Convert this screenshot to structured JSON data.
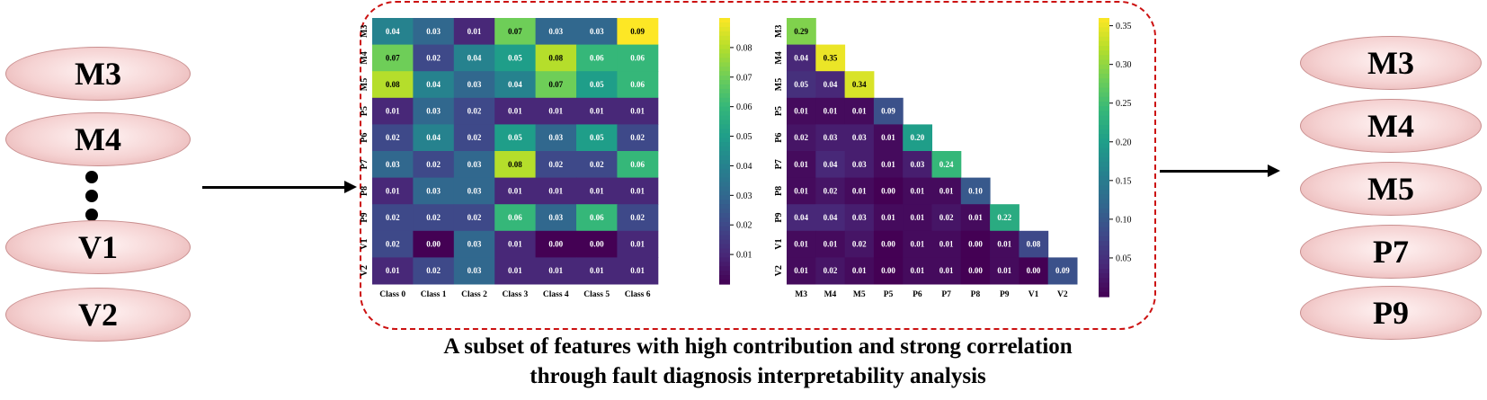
{
  "left_features": [
    "M3",
    "M4",
    "V1",
    "V2"
  ],
  "right_features": [
    "M3",
    "M4",
    "M5",
    "P7",
    "P9"
  ],
  "caption": {
    "line1": "A subset of features with high contribution and strong correlation",
    "line2": "through fault diagnosis interpretability analysis"
  },
  "chart_data": [
    {
      "type": "heatmap",
      "rows": [
        "M3",
        "M4",
        "M5",
        "P5",
        "P6",
        "P7",
        "P8",
        "P9",
        "V1",
        "V2"
      ],
      "columns": [
        "Class 0",
        "Class 1",
        "Class 2",
        "Class 3",
        "Class 4",
        "Class 5",
        "Class 6"
      ],
      "values": [
        [
          0.04,
          0.03,
          0.01,
          0.07,
          0.03,
          0.03,
          0.09
        ],
        [
          0.07,
          0.02,
          0.04,
          0.05,
          0.08,
          0.06,
          0.06
        ],
        [
          0.08,
          0.04,
          0.03,
          0.04,
          0.07,
          0.05,
          0.06
        ],
        [
          0.01,
          0.03,
          0.02,
          0.01,
          0.01,
          0.01,
          0.01
        ],
        [
          0.02,
          0.04,
          0.02,
          0.05,
          0.03,
          0.05,
          0.02
        ],
        [
          0.03,
          0.02,
          0.03,
          0.08,
          0.02,
          0.02,
          0.06
        ],
        [
          0.01,
          0.03,
          0.03,
          0.01,
          0.01,
          0.01,
          0.01
        ],
        [
          0.02,
          0.02,
          0.02,
          0.06,
          0.03,
          0.06,
          0.02
        ],
        [
          0.02,
          0.0,
          0.03,
          0.01,
          0.0,
          0.0,
          0.01
        ],
        [
          0.01,
          0.02,
          0.03,
          0.01,
          0.01,
          0.01,
          0.01
        ]
      ],
      "colormap": "viridis",
      "vmin": 0.0,
      "vmax": 0.09,
      "colorbar_ticks": [
        "0.01",
        "0.02",
        "0.03",
        "0.04",
        "0.05",
        "0.06",
        "0.07",
        "0.08"
      ]
    },
    {
      "type": "heatmap",
      "rows": [
        "M3",
        "M4",
        "M5",
        "P5",
        "P6",
        "P7",
        "P8",
        "P9",
        "V1",
        "V2"
      ],
      "columns": [
        "M3",
        "M4",
        "M5",
        "P5",
        "P6",
        "P7",
        "P8",
        "P9",
        "V1",
        "V2"
      ],
      "values": [
        [
          0.29
        ],
        [
          0.04,
          0.35
        ],
        [
          0.05,
          0.04,
          0.34
        ],
        [
          0.01,
          0.01,
          0.01,
          0.09
        ],
        [
          0.02,
          0.03,
          0.03,
          0.01,
          0.2
        ],
        [
          0.01,
          0.04,
          0.03,
          0.01,
          0.03,
          0.24
        ],
        [
          0.01,
          0.02,
          0.01,
          0.0,
          0.01,
          0.01,
          0.1
        ],
        [
          0.04,
          0.04,
          0.03,
          0.01,
          0.01,
          0.02,
          0.01,
          0.22
        ],
        [
          0.01,
          0.01,
          0.02,
          0.0,
          0.01,
          0.01,
          0.0,
          0.01,
          0.08
        ],
        [
          0.01,
          0.02,
          0.01,
          0.0,
          0.01,
          0.01,
          0.0,
          0.01,
          0.0,
          0.09
        ]
      ],
      "triangle": "lower",
      "colormap": "viridis",
      "vmin": 0.0,
      "vmax": 0.36,
      "colorbar_ticks": [
        "0.05",
        "0.10",
        "0.15",
        "0.20",
        "0.25",
        "0.30",
        "0.35"
      ]
    }
  ]
}
